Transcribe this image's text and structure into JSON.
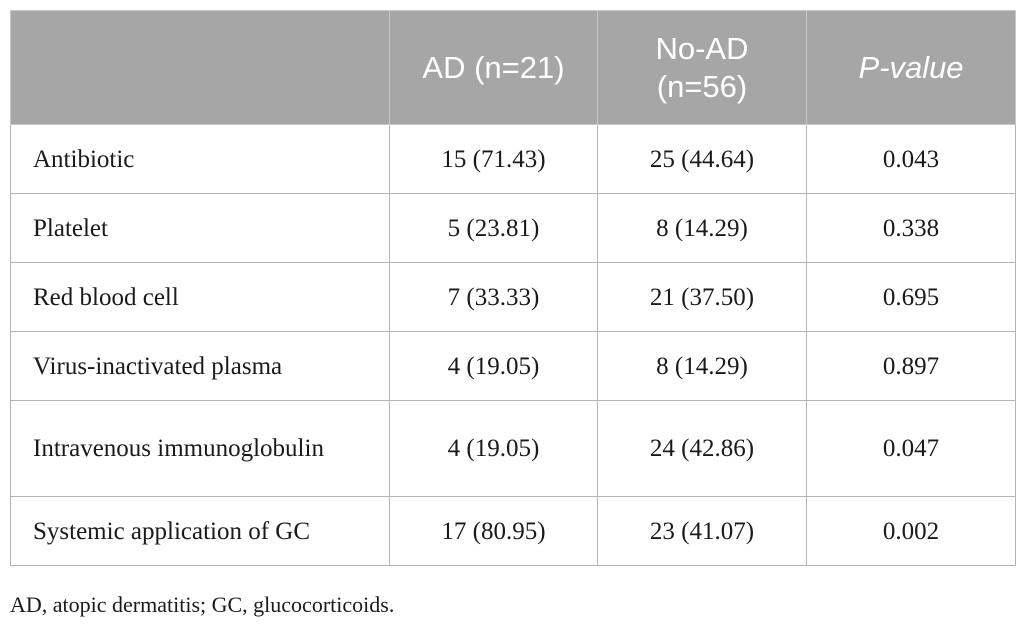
{
  "table": {
    "headers": [
      "",
      "AD (n=21)",
      "No-AD (n=56)",
      "P-value"
    ],
    "header_fill": "#a6a6a6",
    "rows": [
      [
        "Antibiotic",
        "15 (71.43)",
        "25 (44.64)",
        "0.043"
      ],
      [
        "Platelet",
        "5 (23.81)",
        "8 (14.29)",
        "0.338"
      ],
      [
        "Red blood cell",
        "7 (33.33)",
        "21 (37.50)",
        "0.695"
      ],
      [
        "Virus-inactivated plasma",
        "4 (19.05)",
        "8 (14.29)",
        "0.897"
      ],
      [
        "Intravenous immunoglobulin",
        "4 (19.05)",
        "24 (42.86)",
        "0.047"
      ],
      [
        "Systemic application of GC",
        "17 (80.95)",
        "23 (41.07)",
        "0.002"
      ]
    ]
  },
  "footnote": "AD, atopic dermatitis; GC, glucocorticoids."
}
